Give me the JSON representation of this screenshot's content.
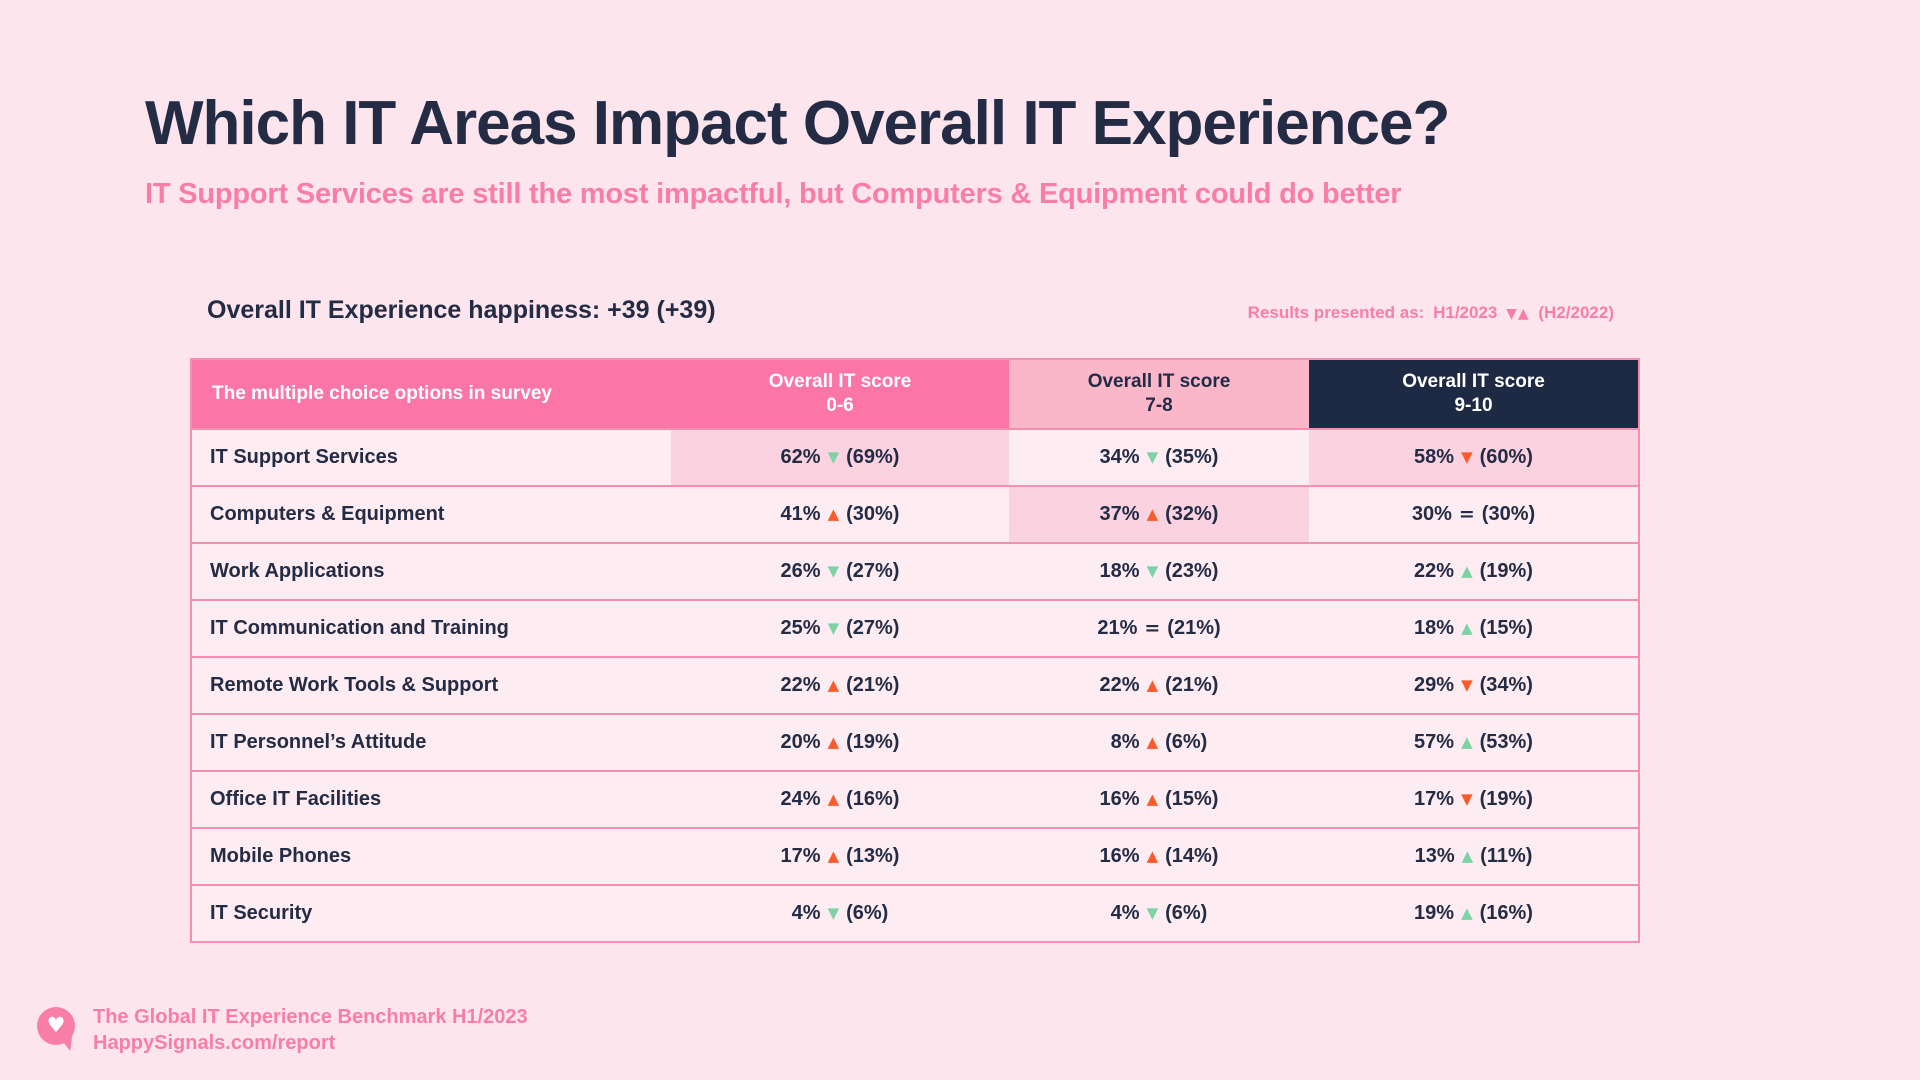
{
  "page": {
    "title": "Which IT Areas Impact Overall IT Experience?",
    "subtitle": "IT Support Services are still the most impactful, but Computers & Equipment could do better",
    "happiness_label": "Overall IT Experience happiness: +39 (+39)",
    "legend": {
      "label": "Results presented as:",
      "current": "H1/2023",
      "arrows": "▼▲",
      "previous": "(H2/2022)"
    }
  },
  "colors": {
    "page_background": "#FCE5EC",
    "navy_text": "#232B45",
    "header_hot_pink": "#FB76A6",
    "header_light_pink": "#F9B7C9",
    "header_navy": "#1E2A44",
    "row_background": "#FDECF1",
    "highlight_cell": "#FBD3E0",
    "divider_pink": "#F48FB0",
    "pink_text": "#F87EA8",
    "positive_green": "#7DD3A6",
    "negative_orange": "#F95B2B"
  },
  "table": {
    "header": {
      "col1": "The multiple choice options in survey",
      "col2_line1": "Overall IT score",
      "col2_line2": "0-6",
      "col3_line1": "Overall IT score",
      "col3_line2": "7-8",
      "col4_line1": "Overall IT score",
      "col4_line2": "9-10"
    },
    "rows": [
      {
        "label": "IT Support Services",
        "cells": [
          {
            "value": "62%",
            "arrow": "▼",
            "color": "green",
            "prev": "(69%)",
            "hl": "yes"
          },
          {
            "value": "34%",
            "arrow": "▼",
            "color": "green",
            "prev": "(35%)",
            "hl": "no"
          },
          {
            "value": "58%",
            "arrow": "▼",
            "color": "orange",
            "prev": "(60%)",
            "hl": "yes"
          }
        ]
      },
      {
        "label": "Computers & Equipment",
        "cells": [
          {
            "value": "41%",
            "arrow": "▲",
            "color": "orange",
            "prev": "(30%)",
            "hl": "no"
          },
          {
            "value": "37%",
            "arrow": "▲",
            "color": "orange",
            "prev": "(32%)",
            "hl": "yes"
          },
          {
            "value": "30%",
            "arrow": "=",
            "color": "navy",
            "prev": "(30%)",
            "hl": "no"
          }
        ]
      },
      {
        "label": "Work Applications",
        "cells": [
          {
            "value": "26%",
            "arrow": "▼",
            "color": "green",
            "prev": "(27%)",
            "hl": "no"
          },
          {
            "value": "18%",
            "arrow": "▼",
            "color": "green",
            "prev": "(23%)",
            "hl": "no"
          },
          {
            "value": "22%",
            "arrow": "▲",
            "color": "green",
            "prev": "(19%)",
            "hl": "no"
          }
        ]
      },
      {
        "label": "IT Communication and Training",
        "cells": [
          {
            "value": "25%",
            "arrow": "▼",
            "color": "green",
            "prev": "(27%)",
            "hl": "no"
          },
          {
            "value": "21%",
            "arrow": "=",
            "color": "navy",
            "prev": "(21%)",
            "hl": "no"
          },
          {
            "value": "18%",
            "arrow": "▲",
            "color": "green",
            "prev": "(15%)",
            "hl": "no"
          }
        ]
      },
      {
        "label": "Remote Work Tools & Support",
        "cells": [
          {
            "value": "22%",
            "arrow": "▲",
            "color": "orange",
            "prev": "(21%)",
            "hl": "no"
          },
          {
            "value": "22%",
            "arrow": "▲",
            "color": "orange",
            "prev": "(21%)",
            "hl": "no"
          },
          {
            "value": "29%",
            "arrow": "▼",
            "color": "orange",
            "prev": "(34%)",
            "hl": "no"
          }
        ]
      },
      {
        "label": "IT Personnel’s Attitude",
        "cells": [
          {
            "value": "20%",
            "arrow": "▲",
            "color": "orange",
            "prev": "(19%)",
            "hl": "no"
          },
          {
            "value": "8%",
            "arrow": "▲",
            "color": "orange",
            "prev": "(6%)",
            "hl": "no"
          },
          {
            "value": "57%",
            "arrow": "▲",
            "color": "green",
            "prev": "(53%)",
            "hl": "no"
          }
        ]
      },
      {
        "label": "Office IT Facilities",
        "cells": [
          {
            "value": "24%",
            "arrow": "▲",
            "color": "orange",
            "prev": "(16%)",
            "hl": "no"
          },
          {
            "value": "16%",
            "arrow": "▲",
            "color": "orange",
            "prev": "(15%)",
            "hl": "no"
          },
          {
            "value": "17%",
            "arrow": "▼",
            "color": "orange",
            "prev": "(19%)",
            "hl": "no"
          }
        ]
      },
      {
        "label": "Mobile Phones",
        "cells": [
          {
            "value": "17%",
            "arrow": "▲",
            "color": "orange",
            "prev": "(13%)",
            "hl": "no"
          },
          {
            "value": "16%",
            "arrow": "▲",
            "color": "orange",
            "prev": "(14%)",
            "hl": "no"
          },
          {
            "value": "13%",
            "arrow": "▲",
            "color": "green",
            "prev": "(11%)",
            "hl": "no"
          }
        ]
      },
      {
        "label": "IT Security",
        "cells": [
          {
            "value": "4%",
            "arrow": "▼",
            "color": "green",
            "prev": "(6%)",
            "hl": "no"
          },
          {
            "value": "4%",
            "arrow": "▼",
            "color": "green",
            "prev": "(6%)",
            "hl": "no"
          },
          {
            "value": "19%",
            "arrow": "▲",
            "color": "green",
            "prev": "(16%)",
            "hl": "no"
          }
        ]
      }
    ]
  },
  "footer": {
    "logo": "heart-speech-bubble",
    "heart_glyph": "♥",
    "line1": "The Global IT Experience Benchmark H1/2023",
    "line2": "HappySignals.com/report"
  },
  "chart_data": {
    "type": "table",
    "title": "Which IT Areas Impact Overall IT Experience?",
    "subtitle": "IT Support Services are still the most impactful, but Computers & Equipment could do better",
    "overall_it_experience_happiness": "+39 (+39)",
    "results_presented_as": "H1/2023 ▼▲ (H2/2022)",
    "columns": [
      "The multiple choice options in survey",
      "Overall IT score 0-6",
      "Overall IT score 7-8",
      "Overall IT score 9-10"
    ],
    "rows": [
      {
        "option": "IT Support Services",
        "score_0_6": {
          "h1_2023": 62,
          "h2_2022": 69,
          "trend": "down"
        },
        "score_7_8": {
          "h1_2023": 34,
          "h2_2022": 35,
          "trend": "down"
        },
        "score_9_10": {
          "h1_2023": 58,
          "h2_2022": 60,
          "trend": "down"
        }
      },
      {
        "option": "Computers & Equipment",
        "score_0_6": {
          "h1_2023": 41,
          "h2_2022": 30,
          "trend": "up"
        },
        "score_7_8": {
          "h1_2023": 37,
          "h2_2022": 32,
          "trend": "up"
        },
        "score_9_10": {
          "h1_2023": 30,
          "h2_2022": 30,
          "trend": "equal"
        }
      },
      {
        "option": "Work Applications",
        "score_0_6": {
          "h1_2023": 26,
          "h2_2022": 27,
          "trend": "down"
        },
        "score_7_8": {
          "h1_2023": 18,
          "h2_2022": 23,
          "trend": "down"
        },
        "score_9_10": {
          "h1_2023": 22,
          "h2_2022": 19,
          "trend": "up"
        }
      },
      {
        "option": "IT Communication and Training",
        "score_0_6": {
          "h1_2023": 25,
          "h2_2022": 27,
          "trend": "down"
        },
        "score_7_8": {
          "h1_2023": 21,
          "h2_2022": 21,
          "trend": "equal"
        },
        "score_9_10": {
          "h1_2023": 18,
          "h2_2022": 15,
          "trend": "up"
        }
      },
      {
        "option": "Remote Work Tools & Support",
        "score_0_6": {
          "h1_2023": 22,
          "h2_2022": 21,
          "trend": "up"
        },
        "score_7_8": {
          "h1_2023": 22,
          "h2_2022": 21,
          "trend": "up"
        },
        "score_9_10": {
          "h1_2023": 29,
          "h2_2022": 34,
          "trend": "down"
        }
      },
      {
        "option": "IT Personnel’s Attitude",
        "score_0_6": {
          "h1_2023": 20,
          "h2_2022": 19,
          "trend": "up"
        },
        "score_7_8": {
          "h1_2023": 8,
          "h2_2022": 6,
          "trend": "up"
        },
        "score_9_10": {
          "h1_2023": 57,
          "h2_2022": 53,
          "trend": "up"
        }
      },
      {
        "option": "Office IT Facilities",
        "score_0_6": {
          "h1_2023": 24,
          "h2_2022": 16,
          "trend": "up"
        },
        "score_7_8": {
          "h1_2023": 16,
          "h2_2022": 15,
          "trend": "up"
        },
        "score_9_10": {
          "h1_2023": 17,
          "h2_2022": 19,
          "trend": "down"
        }
      },
      {
        "option": "Mobile Phones",
        "score_0_6": {
          "h1_2023": 17,
          "h2_2022": 13,
          "trend": "up"
        },
        "score_7_8": {
          "h1_2023": 16,
          "h2_2022": 14,
          "trend": "up"
        },
        "score_9_10": {
          "h1_2023": 13,
          "h2_2022": 11,
          "trend": "up"
        }
      },
      {
        "option": "IT Security",
        "score_0_6": {
          "h1_2023": 4,
          "h2_2022": 6,
          "trend": "down"
        },
        "score_7_8": {
          "h1_2023": 4,
          "h2_2022": 6,
          "trend": "down"
        },
        "score_9_10": {
          "h1_2023": 19,
          "h2_2022": 16,
          "trend": "up"
        }
      }
    ]
  }
}
